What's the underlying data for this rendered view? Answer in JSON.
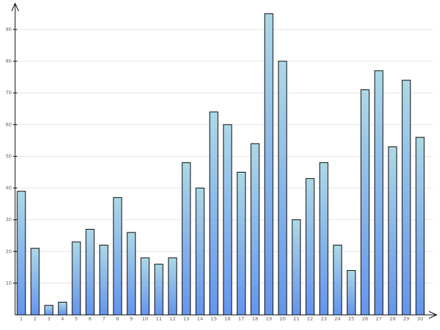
{
  "chart_data": {
    "type": "bar",
    "categories": [
      "1",
      "2",
      "3",
      "4",
      "5",
      "6",
      "7",
      "8",
      "9",
      "10",
      "11",
      "12",
      "13",
      "14",
      "15",
      "16",
      "17",
      "18",
      "19",
      "20",
      "21",
      "22",
      "23",
      "24",
      "25",
      "26",
      "27",
      "28",
      "29",
      "30"
    ],
    "values": [
      39,
      21,
      3,
      4,
      23,
      27,
      22,
      37,
      26,
      18,
      16,
      18,
      48,
      40,
      64,
      60,
      45,
      54,
      95,
      80,
      30,
      43,
      48,
      22,
      14,
      71,
      77,
      53,
      74,
      56
    ],
    "color_top": "#add8e6",
    "color_bottom": "#6495ed",
    "ylim": [
      0,
      98
    ],
    "yticks": [
      10,
      20,
      30,
      40,
      50,
      60,
      70,
      80,
      90
    ],
    "grid": true
  }
}
